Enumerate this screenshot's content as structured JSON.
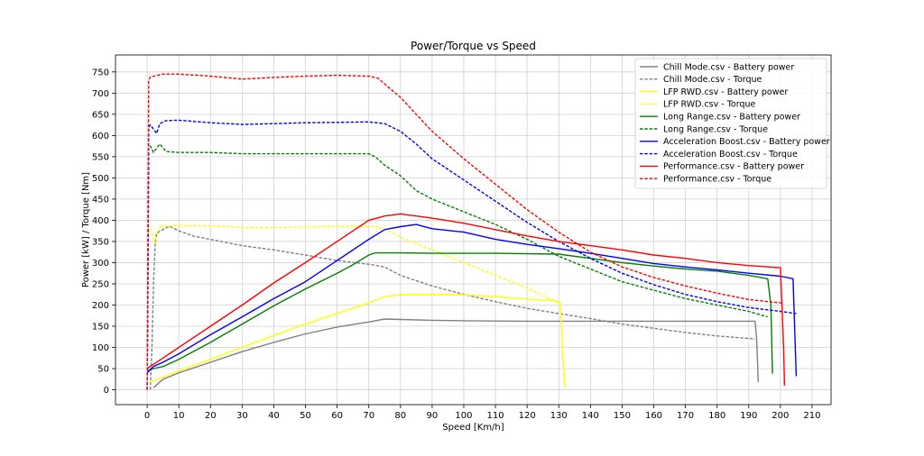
{
  "chart_data": {
    "type": "line",
    "title": "Power/Torque vs Speed",
    "xlabel": "Speed [Km/h]",
    "ylabel": "Power [kW] / Torque [Nm]",
    "xlim": [
      -10,
      216
    ],
    "ylim": [
      -35,
      790
    ],
    "xticks": [
      0,
      10,
      20,
      30,
      40,
      50,
      60,
      70,
      80,
      90,
      100,
      110,
      120,
      130,
      140,
      150,
      160,
      170,
      180,
      190,
      200,
      210
    ],
    "yticks": [
      0,
      50,
      100,
      150,
      200,
      250,
      300,
      350,
      400,
      450,
      500,
      550,
      600,
      650,
      700,
      750
    ],
    "grid": true,
    "legend_position": "top-right",
    "series": [
      {
        "name": "Chill Mode.csv - Battery power",
        "color": "#808080",
        "dash": "solid",
        "points": [
          [
            2,
            5
          ],
          [
            5,
            25
          ],
          [
            10,
            40
          ],
          [
            20,
            65
          ],
          [
            30,
            90
          ],
          [
            40,
            112
          ],
          [
            50,
            132
          ],
          [
            60,
            148
          ],
          [
            70,
            160
          ],
          [
            75,
            167
          ],
          [
            80,
            166
          ],
          [
            90,
            164
          ],
          [
            100,
            163
          ],
          [
            120,
            162
          ],
          [
            140,
            162
          ],
          [
            160,
            162
          ],
          [
            180,
            162
          ],
          [
            192,
            162
          ],
          [
            192.5,
            120
          ],
          [
            192.8,
            60
          ],
          [
            193,
            18
          ]
        ]
      },
      {
        "name": "Chill Mode.csv - Torque",
        "color": "#808080",
        "dash": "dashed",
        "points": [
          [
            1,
            0
          ],
          [
            1.5,
            100
          ],
          [
            2,
            250
          ],
          [
            2.5,
            340
          ],
          [
            3,
            370
          ],
          [
            5,
            378
          ],
          [
            7,
            386
          ],
          [
            10,
            375
          ],
          [
            15,
            362
          ],
          [
            20,
            355
          ],
          [
            30,
            340
          ],
          [
            40,
            330
          ],
          [
            50,
            318
          ],
          [
            60,
            305
          ],
          [
            70,
            296
          ],
          [
            75,
            290
          ],
          [
            80,
            270
          ],
          [
            90,
            245
          ],
          [
            100,
            225
          ],
          [
            110,
            208
          ],
          [
            120,
            192
          ],
          [
            130,
            180
          ],
          [
            140,
            168
          ],
          [
            150,
            155
          ],
          [
            160,
            145
          ],
          [
            170,
            135
          ],
          [
            180,
            127
          ],
          [
            192,
            120
          ]
        ]
      },
      {
        "name": "LFP RWD.csv - Battery power",
        "color": "#FFFF00",
        "dash": "solid",
        "points": [
          [
            1,
            18
          ],
          [
            5,
            30
          ],
          [
            10,
            45
          ],
          [
            20,
            72
          ],
          [
            30,
            100
          ],
          [
            40,
            128
          ],
          [
            50,
            155
          ],
          [
            60,
            180
          ],
          [
            70,
            205
          ],
          [
            75,
            220
          ],
          [
            80,
            224
          ],
          [
            90,
            225
          ],
          [
            100,
            224
          ],
          [
            110,
            220
          ],
          [
            120,
            214
          ],
          [
            129,
            210
          ],
          [
            130.5,
            205
          ],
          [
            131,
            120
          ],
          [
            131.5,
            50
          ],
          [
            132,
            5
          ]
        ]
      },
      {
        "name": "LFP RWD.csv - Torque",
        "color": "#FFFF00",
        "dash": "dashed",
        "points": [
          [
            0,
            375
          ],
          [
            1,
            382
          ],
          [
            2,
            355
          ],
          [
            2.5,
            345
          ],
          [
            4,
            385
          ],
          [
            10,
            388
          ],
          [
            20,
            387
          ],
          [
            30,
            383
          ],
          [
            40,
            383
          ],
          [
            50,
            384
          ],
          [
            60,
            385
          ],
          [
            70,
            385
          ],
          [
            72,
            385
          ],
          [
            76,
            377
          ],
          [
            80,
            360
          ],
          [
            90,
            330
          ],
          [
            100,
            300
          ],
          [
            110,
            270
          ],
          [
            120,
            240
          ],
          [
            130,
            205
          ]
        ]
      },
      {
        "name": "Long Range.csv - Battery power",
        "color": "#008000",
        "dash": "solid",
        "points": [
          [
            0,
            45
          ],
          [
            2,
            50
          ],
          [
            5,
            55
          ],
          [
            10,
            72
          ],
          [
            20,
            112
          ],
          [
            30,
            155
          ],
          [
            40,
            198
          ],
          [
            50,
            238
          ],
          [
            60,
            275
          ],
          [
            65,
            295
          ],
          [
            70,
            318
          ],
          [
            72,
            323
          ],
          [
            80,
            323
          ],
          [
            90,
            322
          ],
          [
            100,
            322
          ],
          [
            110,
            322
          ],
          [
            120,
            321
          ],
          [
            130,
            320
          ],
          [
            140,
            310
          ],
          [
            150,
            300
          ],
          [
            160,
            292
          ],
          [
            170,
            285
          ],
          [
            180,
            280
          ],
          [
            190,
            270
          ],
          [
            196,
            262
          ],
          [
            197,
            200
          ],
          [
            197.3,
            100
          ],
          [
            197.5,
            38
          ]
        ]
      },
      {
        "name": "Long Range.csv - Torque",
        "color": "#008000",
        "dash": "dashed",
        "points": [
          [
            0,
            0
          ],
          [
            0.3,
            300
          ],
          [
            0.5,
            570
          ],
          [
            1,
            575
          ],
          [
            2,
            560
          ],
          [
            4,
            580
          ],
          [
            6,
            562
          ],
          [
            10,
            560
          ],
          [
            20,
            560
          ],
          [
            30,
            557
          ],
          [
            40,
            557
          ],
          [
            50,
            557
          ],
          [
            60,
            557
          ],
          [
            70,
            557
          ],
          [
            72,
            550
          ],
          [
            75,
            530
          ],
          [
            80,
            505
          ],
          [
            85,
            470
          ],
          [
            90,
            450
          ],
          [
            100,
            420
          ],
          [
            110,
            390
          ],
          [
            120,
            355
          ],
          [
            130,
            315
          ],
          [
            140,
            285
          ],
          [
            150,
            255
          ],
          [
            160,
            235
          ],
          [
            170,
            215
          ],
          [
            180,
            200
          ],
          [
            190,
            185
          ],
          [
            196,
            172
          ]
        ]
      },
      {
        "name": "Acceleration Boost.csv - Battery power",
        "color": "#0000FF",
        "dash": "solid",
        "points": [
          [
            0,
            40
          ],
          [
            2,
            55
          ],
          [
            5,
            65
          ],
          [
            10,
            85
          ],
          [
            20,
            130
          ],
          [
            30,
            172
          ],
          [
            40,
            215
          ],
          [
            50,
            255
          ],
          [
            60,
            305
          ],
          [
            70,
            355
          ],
          [
            75,
            378
          ],
          [
            80,
            385
          ],
          [
            85,
            390
          ],
          [
            90,
            380
          ],
          [
            100,
            372
          ],
          [
            110,
            355
          ],
          [
            120,
            343
          ],
          [
            130,
            333
          ],
          [
            140,
            322
          ],
          [
            150,
            310
          ],
          [
            160,
            298
          ],
          [
            170,
            290
          ],
          [
            180,
            283
          ],
          [
            190,
            275
          ],
          [
            200,
            268
          ],
          [
            204,
            262
          ],
          [
            204.5,
            150
          ],
          [
            204.8,
            80
          ],
          [
            205,
            32
          ]
        ]
      },
      {
        "name": "Acceleration Boost.csv - Torque",
        "color": "#0000FF",
        "dash": "dashed",
        "points": [
          [
            0,
            0
          ],
          [
            0.3,
            300
          ],
          [
            0.5,
            620
          ],
          [
            1,
            625
          ],
          [
            2,
            615
          ],
          [
            3,
            605
          ],
          [
            4,
            628
          ],
          [
            6,
            635
          ],
          [
            10,
            636
          ],
          [
            20,
            630
          ],
          [
            30,
            626
          ],
          [
            40,
            628
          ],
          [
            50,
            630
          ],
          [
            60,
            631
          ],
          [
            70,
            632
          ],
          [
            75,
            628
          ],
          [
            80,
            610
          ],
          [
            85,
            580
          ],
          [
            90,
            545
          ],
          [
            100,
            495
          ],
          [
            110,
            445
          ],
          [
            120,
            395
          ],
          [
            130,
            350
          ],
          [
            140,
            310
          ],
          [
            150,
            275
          ],
          [
            160,
            248
          ],
          [
            170,
            225
          ],
          [
            180,
            208
          ],
          [
            190,
            194
          ],
          [
            200,
            185
          ],
          [
            205,
            180
          ]
        ]
      },
      {
        "name": "Performance.csv - Battery power",
        "color": "#FF0000",
        "dash": "solid",
        "points": [
          [
            0,
            50
          ],
          [
            2,
            60
          ],
          [
            5,
            75
          ],
          [
            10,
            100
          ],
          [
            20,
            150
          ],
          [
            30,
            200
          ],
          [
            40,
            252
          ],
          [
            50,
            300
          ],
          [
            60,
            350
          ],
          [
            65,
            375
          ],
          [
            70,
            400
          ],
          [
            75,
            410
          ],
          [
            80,
            415
          ],
          [
            85,
            410
          ],
          [
            90,
            405
          ],
          [
            100,
            393
          ],
          [
            110,
            378
          ],
          [
            120,
            363
          ],
          [
            130,
            350
          ],
          [
            140,
            340
          ],
          [
            150,
            330
          ],
          [
            160,
            318
          ],
          [
            170,
            310
          ],
          [
            180,
            300
          ],
          [
            190,
            293
          ],
          [
            200,
            288
          ],
          [
            200.5,
            200
          ],
          [
            201,
            100
          ],
          [
            201.3,
            10
          ]
        ]
      },
      {
        "name": "Performance.csv - Torque",
        "color": "#FF0000",
        "dash": "dashed",
        "points": [
          [
            0,
            0
          ],
          [
            0.3,
            400
          ],
          [
            0.5,
            730
          ],
          [
            1,
            738
          ],
          [
            2,
            740
          ],
          [
            5,
            745
          ],
          [
            10,
            745
          ],
          [
            20,
            740
          ],
          [
            30,
            733
          ],
          [
            40,
            737
          ],
          [
            50,
            740
          ],
          [
            60,
            742
          ],
          [
            70,
            740
          ],
          [
            73,
            735
          ],
          [
            76,
            715
          ],
          [
            80,
            690
          ],
          [
            85,
            650
          ],
          [
            90,
            610
          ],
          [
            100,
            545
          ],
          [
            110,
            485
          ],
          [
            120,
            425
          ],
          [
            130,
            372
          ],
          [
            140,
            325
          ],
          [
            150,
            290
          ],
          [
            160,
            265
          ],
          [
            170,
            245
          ],
          [
            180,
            228
          ],
          [
            190,
            213
          ],
          [
            200,
            205
          ],
          [
            201,
            205
          ]
        ]
      }
    ]
  }
}
